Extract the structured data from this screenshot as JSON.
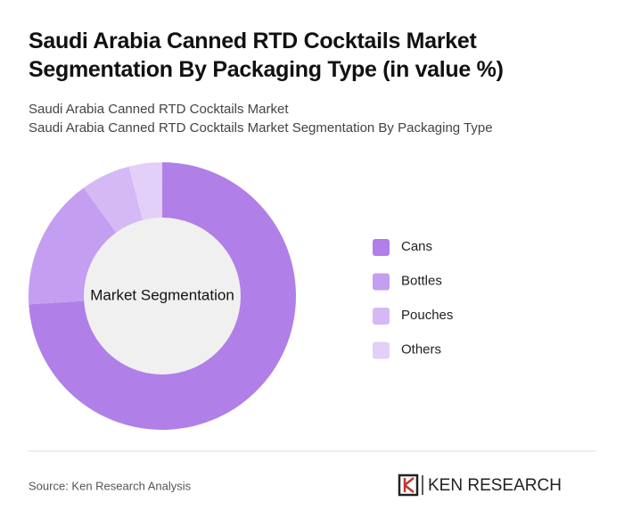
{
  "chart_data": {
    "type": "donut",
    "title": "Saudi Arabia Canned RTD Cocktails Market Segmentation By Packaging Type (in value %)",
    "subtitle": [
      "Saudi Arabia Canned RTD Cocktails Market",
      "Saudi Arabia Canned RTD Cocktails Market Segmentation By Packaging Type"
    ],
    "center_label": "Market Segmentation",
    "categories": [
      "Cans",
      "Bottles",
      "Pouches",
      "Others"
    ],
    "values": [
      74,
      16,
      6,
      4
    ],
    "colors": [
      "#b07fe8",
      "#c49ef0",
      "#d5b9f5",
      "#e2d0f8"
    ],
    "source": "Source: Ken Research Analysis",
    "logo": "KEN RESEARCH"
  }
}
